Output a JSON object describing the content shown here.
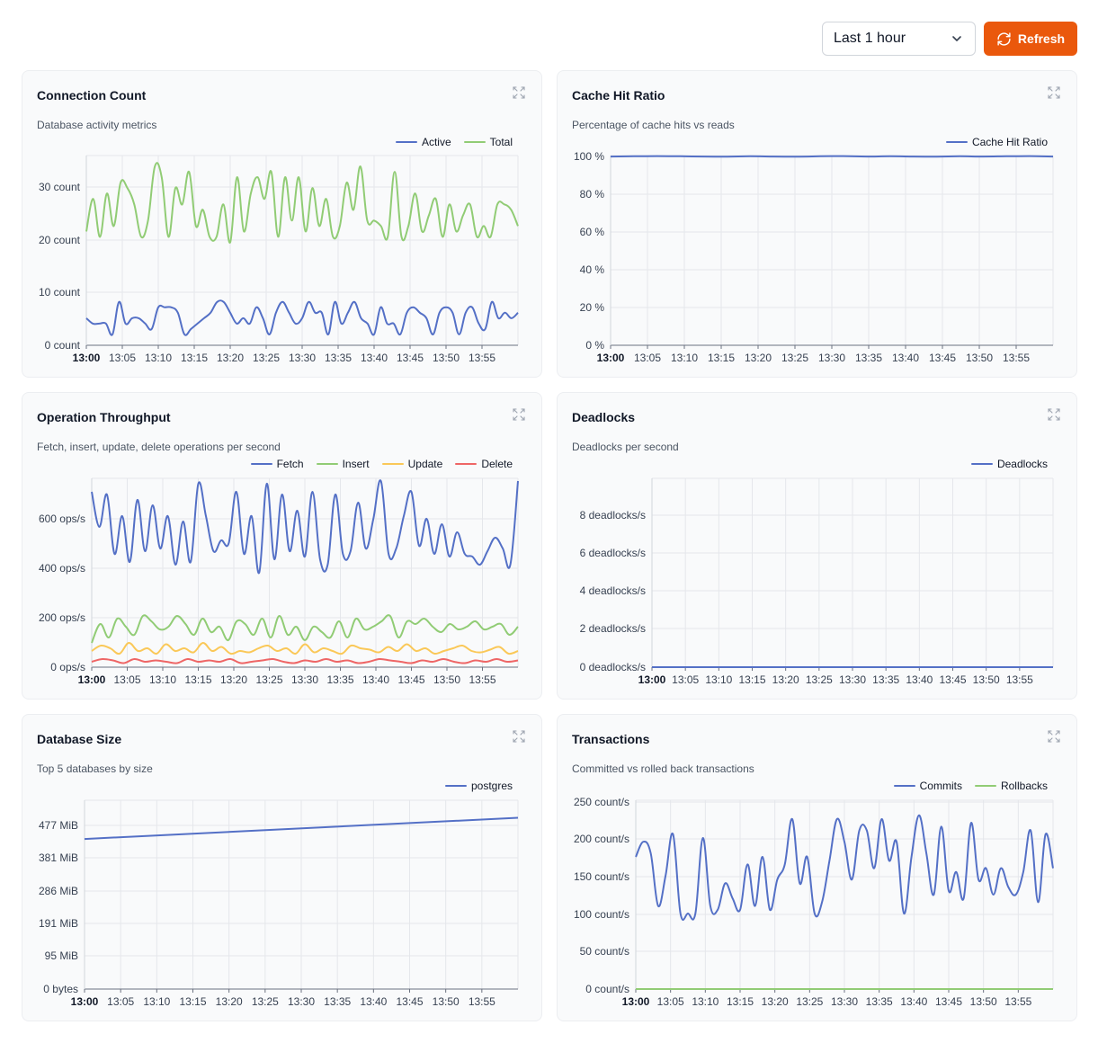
{
  "toolbar": {
    "time_range": "Last 1 hour",
    "refresh_label": "Refresh"
  },
  "colors": {
    "accent": "#ea580c",
    "blue": "#5470c6",
    "green": "#91cc75",
    "yellow": "#fac858",
    "red": "#ee6666"
  },
  "panels": [
    {
      "title": "Connection Count",
      "subtitle": "Database activity metrics"
    },
    {
      "title": "Cache Hit Ratio",
      "subtitle": "Percentage of cache hits vs reads"
    },
    {
      "title": "Operation Throughput",
      "subtitle": "Fetch, insert, update, delete operations per second"
    },
    {
      "title": "Deadlocks",
      "subtitle": "Deadlocks per second"
    },
    {
      "title": "Database Size",
      "subtitle": "Top 5 databases by size"
    },
    {
      "title": "Transactions",
      "subtitle": "Committed vs rolled back transactions"
    }
  ],
  "chart_data": [
    {
      "type": "line",
      "title": "Connection Count",
      "x_ticks": [
        "13:00",
        "13:05",
        "13:10",
        "13:15",
        "13:20",
        "13:25",
        "13:30",
        "13:35",
        "13:40",
        "13:45",
        "13:50",
        "13:55"
      ],
      "xlim": [
        "13:00",
        "13:59"
      ],
      "y_ticks": [
        "0 count",
        "10 count",
        "20 count",
        "30 count"
      ],
      "ylim": [
        0,
        35
      ],
      "grid": true,
      "legend": "top-right",
      "series": [
        {
          "name": "Active",
          "color": "#5470c6",
          "values": [
            5,
            4,
            4,
            4,
            2,
            8,
            4,
            5,
            5,
            4,
            3,
            7,
            7,
            7,
            6,
            2,
            3,
            4,
            5,
            6,
            8,
            8,
            6,
            4,
            5,
            4,
            7,
            5,
            2,
            6,
            8,
            6,
            4,
            5,
            8,
            6,
            6,
            2,
            8,
            4,
            6,
            8,
            5,
            4,
            2,
            7,
            4,
            4,
            2,
            6,
            7,
            6,
            5,
            2,
            6,
            7,
            6,
            2,
            6,
            7,
            4,
            3,
            8,
            5,
            6,
            5,
            6
          ],
          "y": [
            5,
            4,
            4,
            4,
            2,
            8,
            4,
            5,
            5,
            4,
            3,
            7,
            7,
            7,
            6,
            2,
            3,
            4,
            5,
            6,
            8,
            8,
            6,
            4,
            5,
            4,
            7,
            5,
            2,
            6,
            8,
            6,
            4,
            5,
            8,
            6,
            6,
            2,
            8,
            4,
            6,
            8,
            5,
            4,
            2,
            7,
            4,
            4,
            2,
            6,
            7,
            6,
            5,
            2,
            6,
            7,
            6,
            2,
            6,
            7,
            4,
            3,
            8,
            5,
            6,
            5,
            6
          ]
        },
        {
          "name": "Total",
          "color": "#91cc75",
          "values": [
            21,
            27,
            20,
            28,
            22,
            30,
            29,
            26,
            20,
            23,
            33,
            31,
            20,
            29,
            26,
            32,
            22,
            25,
            20,
            20,
            26,
            19,
            31,
            21,
            28,
            31,
            27,
            32,
            20,
            31,
            23,
            31,
            21,
            29,
            22,
            27,
            20,
            22,
            30,
            25,
            33,
            23,
            23,
            22,
            20,
            32,
            20,
            22,
            28,
            21,
            24,
            27,
            20,
            26,
            21,
            24,
            26,
            20,
            22,
            20,
            26,
            26,
            25,
            22
          ]
        }
      ]
    },
    {
      "type": "line",
      "title": "Cache Hit Ratio",
      "x_ticks": [
        "13:00",
        "13:05",
        "13:10",
        "13:15",
        "13:20",
        "13:25",
        "13:30",
        "13:35",
        "13:40",
        "13:45",
        "13:50",
        "13:55"
      ],
      "xlim": [
        "13:00",
        "13:59"
      ],
      "y_ticks": [
        "0 %",
        "20 %",
        "40 %",
        "60 %",
        "80 %",
        "100 %"
      ],
      "ylim": [
        0,
        100
      ],
      "grid": true,
      "legend": "top-right",
      "series": [
        {
          "name": "Cache Hit Ratio",
          "color": "#5470c6",
          "values": [
            99.5,
            99.6,
            99.7,
            99.6,
            99.5,
            99.4,
            99.6,
            99.5,
            99.4,
            99.6,
            99.7,
            99.5,
            99.6,
            99.5,
            99.4,
            99.6,
            99.5,
            99.6,
            99.7,
            99.5
          ]
        }
      ]
    },
    {
      "type": "line",
      "title": "Operation Throughput",
      "x_ticks": [
        "13:00",
        "13:05",
        "13:10",
        "13:15",
        "13:20",
        "13:25",
        "13:30",
        "13:35",
        "13:40",
        "13:45",
        "13:50",
        "13:55"
      ],
      "xlim": [
        "13:00",
        "13:59"
      ],
      "y_ticks": [
        "0 ops/s",
        "200 ops/s",
        "400 ops/s",
        "600 ops/s"
      ],
      "ylim": [
        0,
        700
      ],
      "grid": true,
      "legend": "top-right",
      "series": [
        {
          "name": "Fetch",
          "color": "#5470c6",
          "values": [
            650,
            520,
            640,
            420,
            560,
            390,
            620,
            430,
            600,
            440,
            560,
            380,
            540,
            390,
            680,
            560,
            430,
            470,
            460,
            650,
            420,
            560,
            350,
            680,
            400,
            640,
            430,
            580,
            410,
            650,
            400,
            380,
            640,
            420,
            430,
            610,
            440,
            550,
            690,
            420,
            440,
            560,
            650,
            450,
            550,
            420,
            530,
            410,
            500,
            420,
            410,
            380,
            430,
            480,
            440,
            380,
            690
          ]
        },
        {
          "name": "Insert",
          "color": "#91cc75",
          "values": [
            90,
            160,
            110,
            180,
            150,
            120,
            190,
            170,
            140,
            150,
            190,
            160,
            120,
            180,
            130,
            150,
            100,
            170,
            160,
            120,
            180,
            110,
            190,
            120,
            150,
            100,
            150,
            130,
            110,
            170,
            110,
            180,
            140,
            150,
            170,
            190,
            110,
            170,
            160,
            180,
            150,
            130,
            160,
            140,
            150,
            170,
            140,
            150,
            160,
            120,
            150
          ]
        },
        {
          "name": "Update",
          "color": "#fac858",
          "values": [
            60,
            80,
            70,
            50,
            90,
            60,
            70,
            50,
            85,
            60,
            70,
            55,
            90,
            60,
            75,
            50,
            60,
            55,
            70,
            80,
            60,
            70,
            50,
            85,
            55,
            70,
            60,
            50,
            80,
            70,
            65,
            55,
            75,
            60,
            85,
            60,
            70,
            50,
            60,
            70,
            80,
            60,
            55,
            65,
            75,
            50,
            60
          ]
        },
        {
          "name": "Delete",
          "color": "#ee6666",
          "values": [
            20,
            30,
            25,
            15,
            30,
            20,
            25,
            20,
            15,
            30,
            20,
            25,
            20,
            30,
            15,
            20,
            25,
            30,
            20,
            15,
            25,
            20,
            30,
            20,
            25,
            15,
            20,
            30,
            25,
            20,
            15,
            25,
            20,
            30,
            20,
            15,
            25,
            20,
            30,
            20,
            25
          ]
        }
      ]
    },
    {
      "type": "line",
      "title": "Deadlocks",
      "x_ticks": [
        "13:00",
        "13:05",
        "13:10",
        "13:15",
        "13:20",
        "13:25",
        "13:30",
        "13:35",
        "13:40",
        "13:45",
        "13:50",
        "13:55"
      ],
      "xlim": [
        "13:00",
        "13:59"
      ],
      "y_ticks": [
        "0 deadlocks/s",
        "2 deadlocks/s",
        "4 deadlocks/s",
        "6 deadlocks/s",
        "8 deadlocks/s"
      ],
      "ylim": [
        0,
        10
      ],
      "grid": true,
      "legend": "top-right",
      "series": [
        {
          "name": "Deadlocks",
          "color": "#5470c6",
          "values": [
            0,
            0,
            0,
            0,
            0,
            0,
            0,
            0,
            0,
            0,
            0,
            0
          ]
        }
      ]
    },
    {
      "type": "line",
      "title": "Database Size",
      "x_ticks": [
        "13:00",
        "13:05",
        "13:10",
        "13:15",
        "13:20",
        "13:25",
        "13:30",
        "13:35",
        "13:40",
        "13:45",
        "13:50",
        "13:55"
      ],
      "xlim": [
        "13:00",
        "13:59"
      ],
      "y_ticks": [
        "0 bytes",
        "95 MiB",
        "191 MiB",
        "286 MiB",
        "381 MiB",
        "477 MiB"
      ],
      "ylim": [
        0,
        550
      ],
      "grid": true,
      "legend": "top-right",
      "series": [
        {
          "name": "postgres",
          "color": "#5470c6",
          "values": [
            437,
            499
          ]
        }
      ]
    },
    {
      "type": "line",
      "title": "Transactions",
      "x_ticks": [
        "13:00",
        "13:05",
        "13:10",
        "13:15",
        "13:20",
        "13:25",
        "13:30",
        "13:35",
        "13:40",
        "13:45",
        "13:50",
        "13:55"
      ],
      "xlim": [
        "13:00",
        "13:59"
      ],
      "y_ticks": [
        "0 count/s",
        "50 count/s",
        "100 count/s",
        "150 count/s",
        "200 count/s",
        "250 count/s"
      ],
      "ylim": [
        0,
        250
      ],
      "grid": true,
      "legend": "top-right",
      "series": [
        {
          "name": "Commits",
          "color": "#5470c6",
          "values": [
            175,
            195,
            180,
            110,
            150,
            205,
            100,
            100,
            100,
            200,
            110,
            105,
            140,
            120,
            105,
            165,
            110,
            175,
            105,
            145,
            165,
            225,
            140,
            175,
            100,
            115,
            170,
            225,
            195,
            145,
            210,
            210,
            160,
            225,
            170,
            195,
            100,
            175,
            230,
            180,
            125,
            215,
            130,
            155,
            120,
            220,
            145,
            160,
            125,
            160,
            135,
            125,
            155,
            210,
            115,
            205,
            160
          ]
        },
        {
          "name": "Rollbacks",
          "color": "#91cc75",
          "values": [
            0,
            0,
            0,
            0,
            0,
            0,
            0,
            0,
            0,
            0,
            0,
            0
          ]
        }
      ]
    }
  ]
}
